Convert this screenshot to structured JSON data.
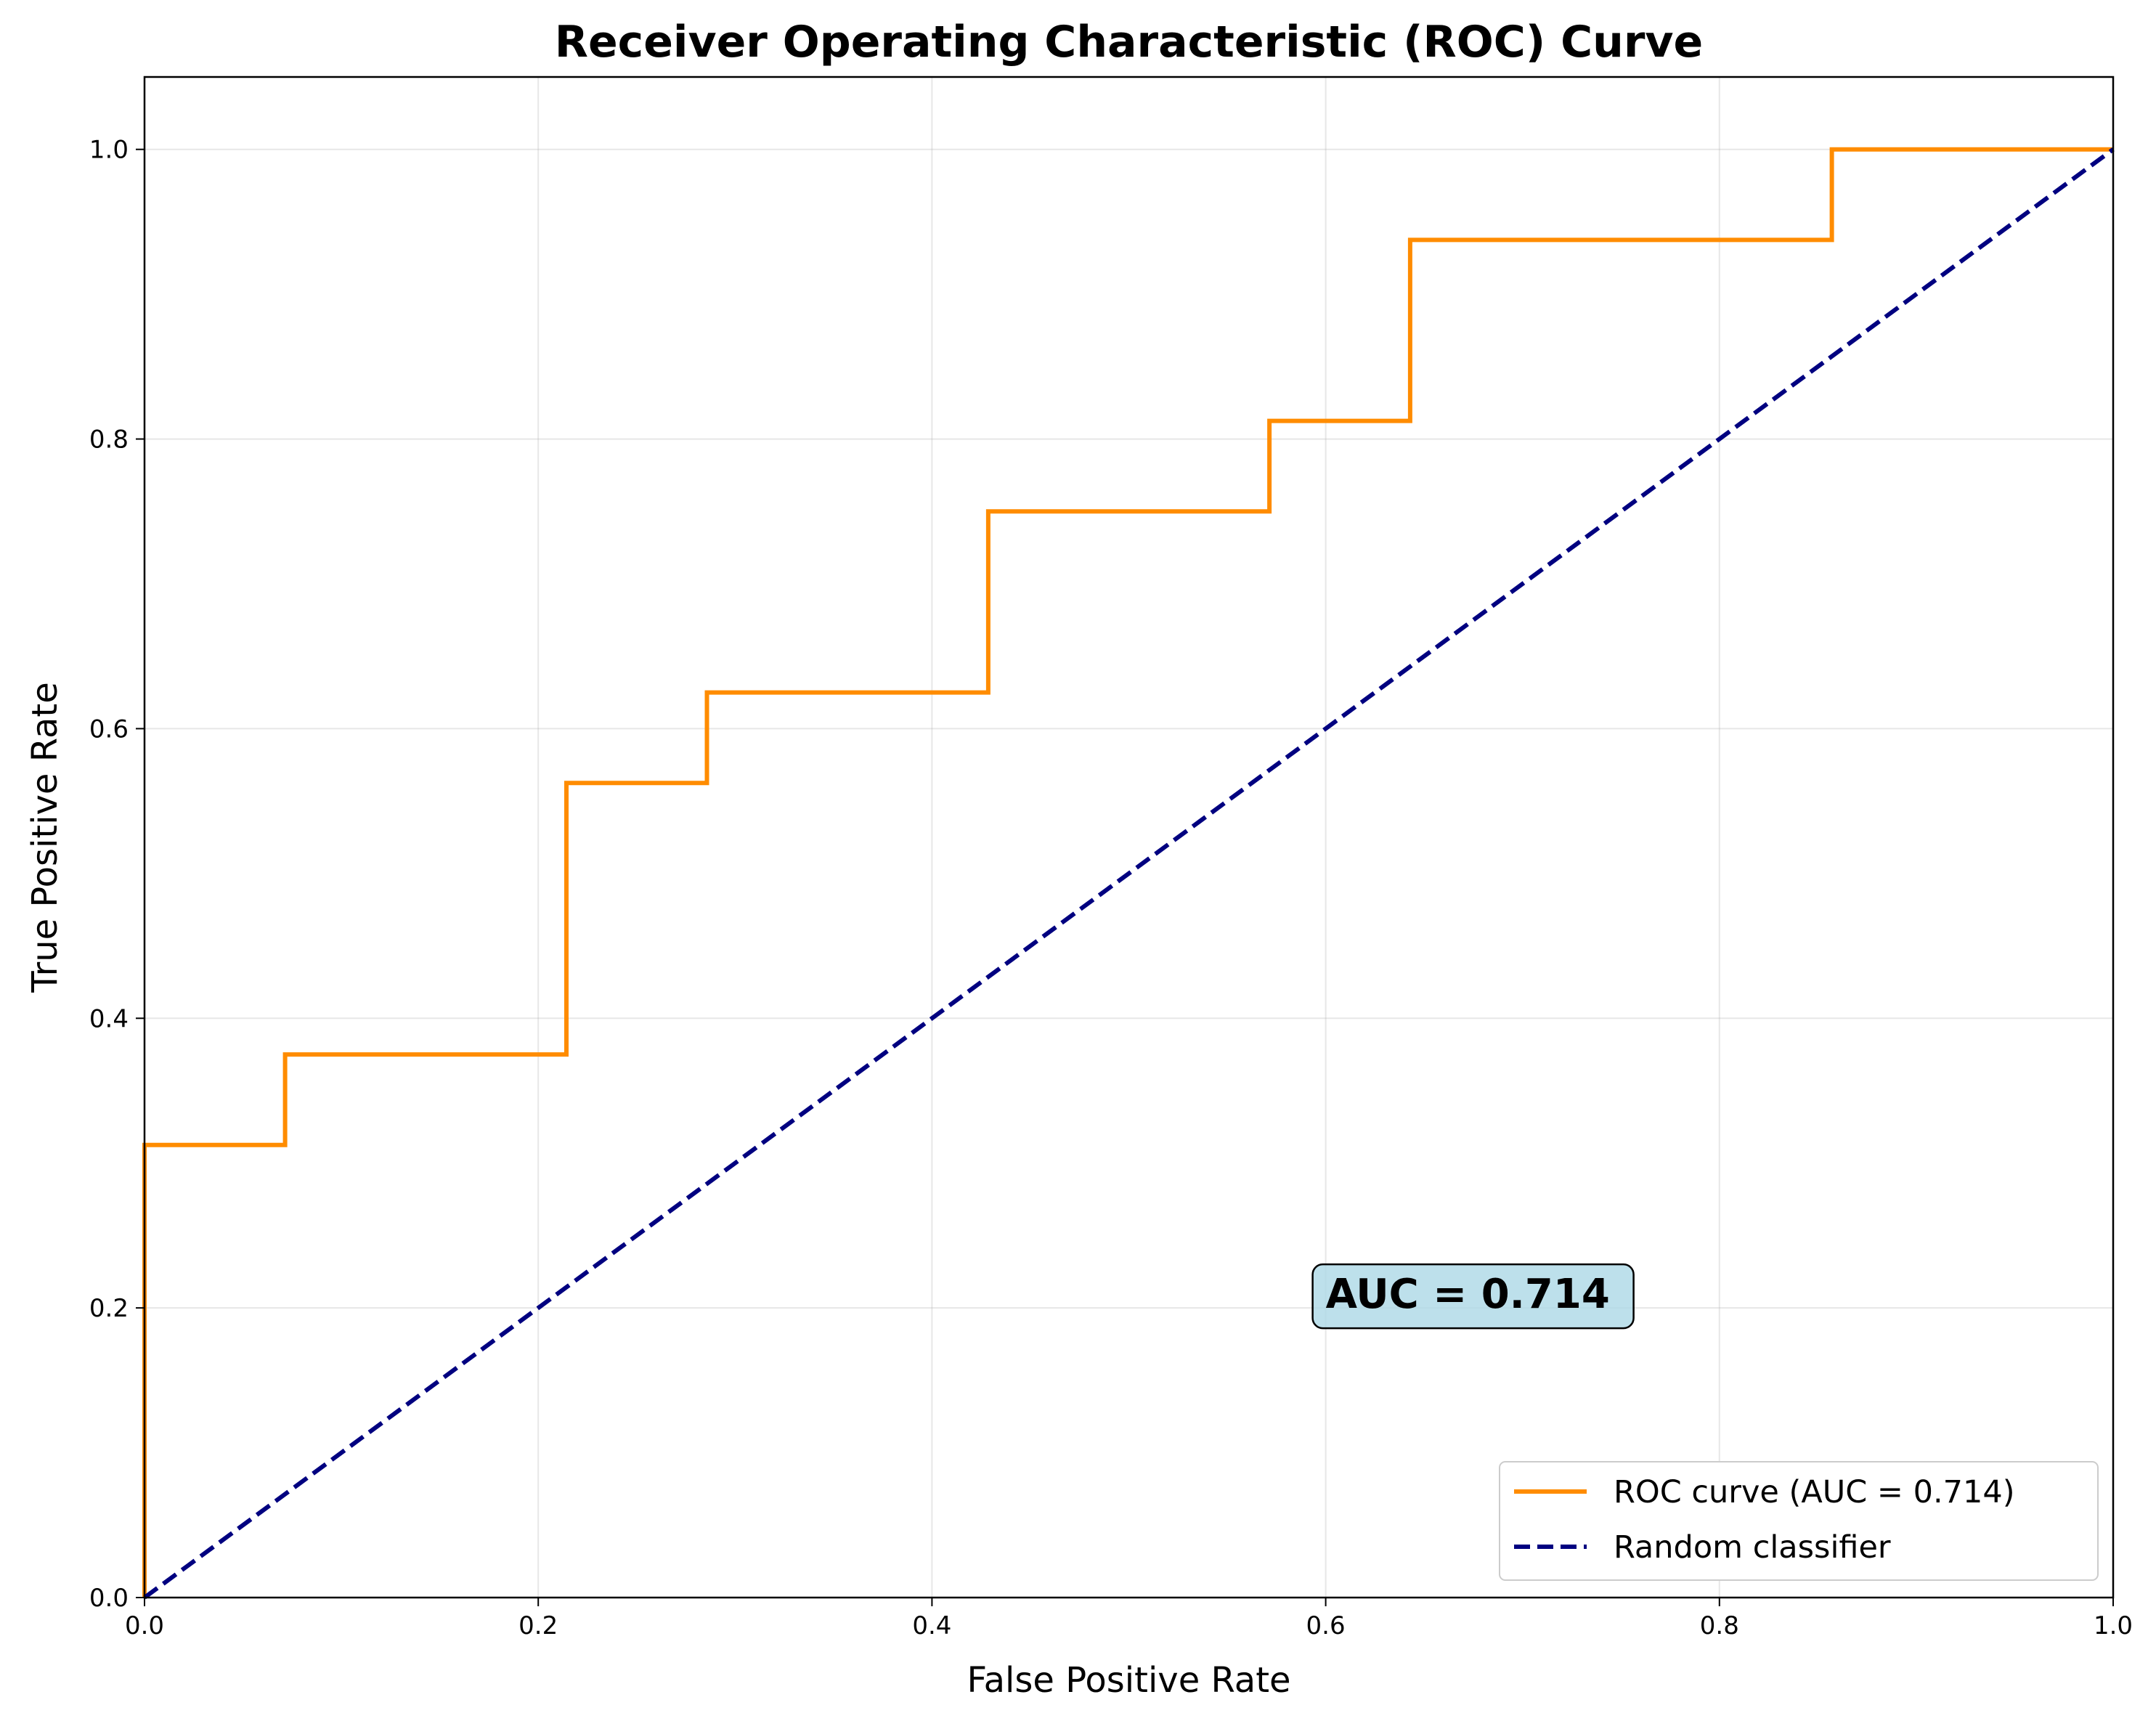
{
  "chart_data": {
    "type": "line",
    "title": "Receiver Operating Characteristic (ROC) Curve",
    "xlabel": "False Positive Rate",
    "ylabel": "True Positive Rate",
    "xlim": [
      0.0,
      1.0
    ],
    "ylim": [
      0.0,
      1.05
    ],
    "xticks": [
      "0.0",
      "0.2",
      "0.4",
      "0.6",
      "0.8",
      "1.0"
    ],
    "yticks": [
      "0.0",
      "0.2",
      "0.4",
      "0.6",
      "0.8",
      "1.0"
    ],
    "grid": true,
    "legend_position": "bottom-right",
    "series": [
      {
        "name": "ROC curve (AUC = 0.714)",
        "color": "#ff8c00",
        "style": "solid",
        "x": [
          0.0,
          0.0,
          0.0714,
          0.0714,
          0.2143,
          0.2143,
          0.2857,
          0.2857,
          0.4286,
          0.4286,
          0.5714,
          0.5714,
          0.6429,
          0.6429,
          0.8571,
          0.8571,
          1.0
        ],
        "y": [
          0.0,
          0.3125,
          0.3125,
          0.375,
          0.375,
          0.5625,
          0.5625,
          0.625,
          0.625,
          0.75,
          0.75,
          0.8125,
          0.8125,
          0.9375,
          0.9375,
          1.0,
          1.0
        ]
      },
      {
        "name": "Random classifier",
        "color": "#000080",
        "style": "dashed",
        "x": [
          0.0,
          1.0
        ],
        "y": [
          0.0,
          1.0
        ]
      }
    ],
    "annotations": [
      {
        "text": "AUC = 0.714",
        "x": 0.6,
        "y": 0.2,
        "box_color": "#add8e6"
      }
    ]
  }
}
